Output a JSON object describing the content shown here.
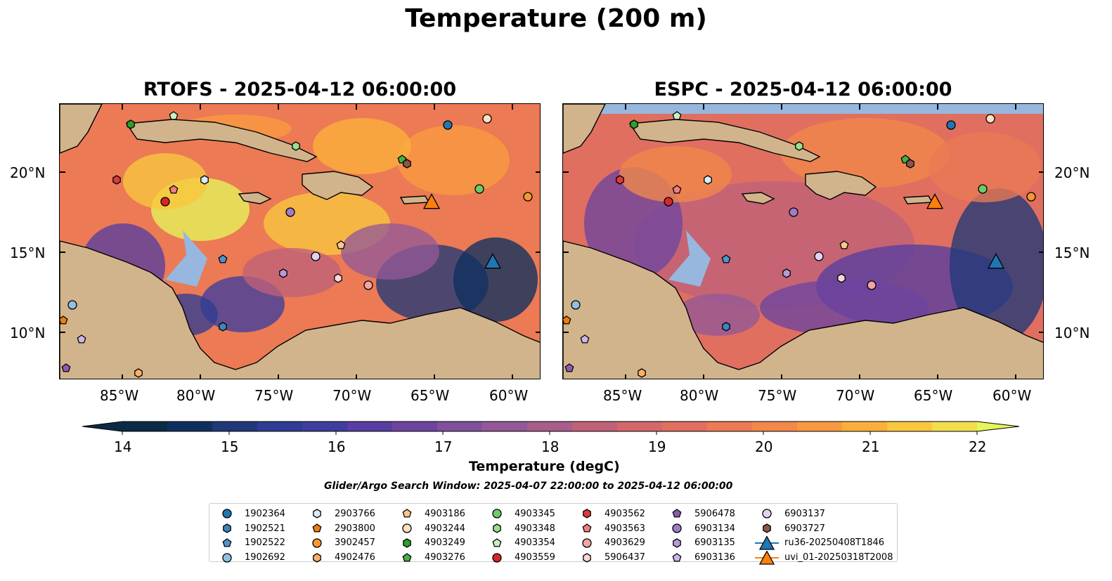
{
  "suptitle": "Temperature (200 m)",
  "panels": [
    {
      "title": "RTOFS - 2025-04-12 06:00:00"
    },
    {
      "title": "ESPC - 2025-04-12 06:00:00"
    }
  ],
  "x_ticks": [
    "85°W",
    "80°W",
    "75°W",
    "70°W",
    "65°W",
    "60°W"
  ],
  "y_ticks": [
    "20°N",
    "15°N",
    "10°N"
  ],
  "colorbar": {
    "label": "Temperature (degC)",
    "ticks": [
      "14",
      "15",
      "16",
      "17",
      "18",
      "19",
      "20",
      "21",
      "22"
    ],
    "colors": [
      "#0a2a46",
      "#0e2f5e",
      "#203878",
      "#2f3c92",
      "#3f3d9d",
      "#573ea0",
      "#6d449f",
      "#80509c",
      "#935897",
      "#a85d8a",
      "#bf6179",
      "#d3676a",
      "#e06f60",
      "#eb7a55",
      "#f2884a",
      "#f89a40",
      "#fbaf3b",
      "#f9c73f",
      "#f2dd4e",
      "#e6f55a"
    ]
  },
  "search_window": "Glider/Argo Search Window: 2025-04-07 22:00:00 to 2025-04-12 06:00:00",
  "legend": [
    {
      "label": "1902364",
      "marker": "circle",
      "color": "#1f77b4"
    },
    {
      "label": "1902521",
      "marker": "hexagon",
      "color": "#3f84bd"
    },
    {
      "label": "1902522",
      "marker": "pentagon",
      "color": "#4f95cf"
    },
    {
      "label": "1902692",
      "marker": "circle",
      "color": "#8fc1e3"
    },
    {
      "label": "2903766",
      "marker": "hexagon",
      "color": "#d6ecf8"
    },
    {
      "label": "2903800",
      "marker": "pentagon",
      "color": "#f07c0d"
    },
    {
      "label": "3902457",
      "marker": "circle",
      "color": "#f89631"
    },
    {
      "label": "4902476",
      "marker": "hexagon",
      "color": "#fbb069"
    },
    {
      "label": "4903186",
      "marker": "pentagon",
      "color": "#fdc68e"
    },
    {
      "label": "4903244",
      "marker": "circle",
      "color": "#fde0c2"
    },
    {
      "label": "4903249",
      "marker": "hexagon",
      "color": "#2ca02c"
    },
    {
      "label": "4903276",
      "marker": "pentagon",
      "color": "#45b045"
    },
    {
      "label": "4903345",
      "marker": "circle",
      "color": "#6ccc6c"
    },
    {
      "label": "4903348",
      "marker": "hexagon",
      "color": "#98df8a"
    },
    {
      "label": "4903354",
      "marker": "pentagon",
      "color": "#c8f0c0"
    },
    {
      "label": "4903559",
      "marker": "circle",
      "color": "#d62728"
    },
    {
      "label": "4903562",
      "marker": "hexagon",
      "color": "#e03a3a"
    },
    {
      "label": "4903563",
      "marker": "pentagon",
      "color": "#f07f7f"
    },
    {
      "label": "4903629",
      "marker": "circle",
      "color": "#f4a3a3"
    },
    {
      "label": "5906437",
      "marker": "hexagon",
      "color": "#fcd6d6"
    },
    {
      "label": "5906478",
      "marker": "pentagon",
      "color": "#8c5cb0"
    },
    {
      "label": "6903134",
      "marker": "circle",
      "color": "#a07cc8"
    },
    {
      "label": "6903135",
      "marker": "hexagon",
      "color": "#b79adb"
    },
    {
      "label": "6903136",
      "marker": "pentagon",
      "color": "#cdb6ea"
    },
    {
      "label": "6903137",
      "marker": "circle",
      "color": "#e1d2f3"
    },
    {
      "label": "6903727",
      "marker": "hexagon",
      "color": "#8c564b"
    },
    {
      "label": "ru36-20250408T1846",
      "marker": "triangle",
      "color": "#1f77b4"
    },
    {
      "label": "uvi_01-20250318T2008",
      "marker": "triangle",
      "color": "#ff7f0e"
    }
  ]
}
